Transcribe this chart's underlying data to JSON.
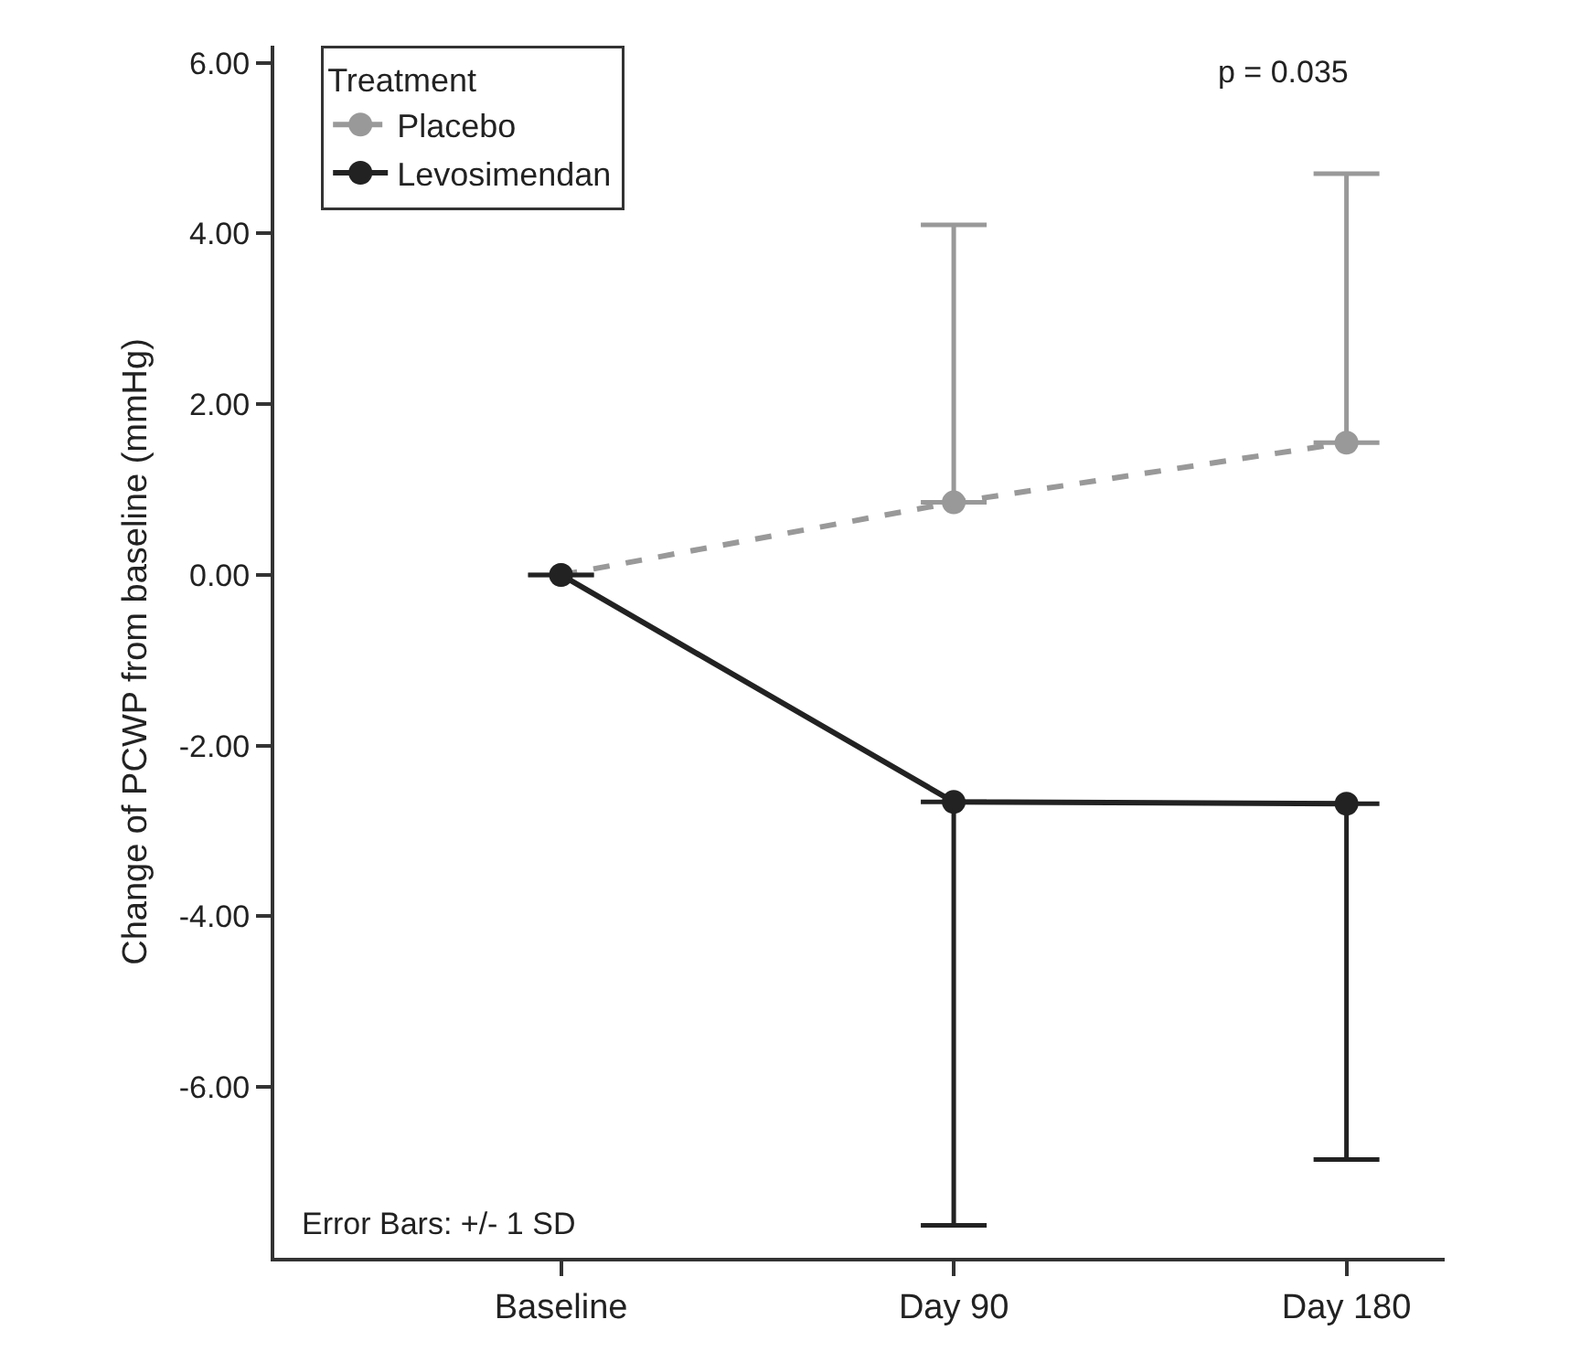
{
  "chart_data": {
    "type": "line",
    "categories": [
      "Baseline",
      "Day 90",
      "Day 180"
    ],
    "ylabel": "Change of PCWP from baseline (mmHg)",
    "legend_title": "Treatment",
    "legend": "top left",
    "marker": "circle",
    "grid": false,
    "ylim": [
      -8.0,
      6.2
    ],
    "yticks": [
      {
        "value": -6,
        "label": "-6.00"
      },
      {
        "value": -4,
        "label": "-4.00"
      },
      {
        "value": -2,
        "label": "-2.00"
      },
      {
        "value": 0,
        "label": "0.00"
      },
      {
        "value": 2,
        "label": "2.00"
      },
      {
        "value": 4,
        "label": "4.00"
      },
      {
        "value": 6,
        "label": "6.00"
      }
    ],
    "series": [
      {
        "name": "Placebo",
        "color": "#999999",
        "line_style": "dashed",
        "values": [
          0,
          0.85,
          1.55
        ],
        "errors": [
          null,
          [
            0.85,
            4.1
          ],
          [
            1.55,
            4.7
          ]
        ]
      },
      {
        "name": "Levosimendan",
        "color": "#222222",
        "line_style": "solid",
        "values": [
          0,
          -2.66,
          -2.68
        ],
        "errors": [
          null,
          [
            -7.62,
            -2.66
          ],
          [
            -6.85,
            -2.68
          ]
        ]
      }
    ],
    "annotations": [
      "p = 0.035",
      "Error Bars: +/- 1 SD"
    ]
  }
}
